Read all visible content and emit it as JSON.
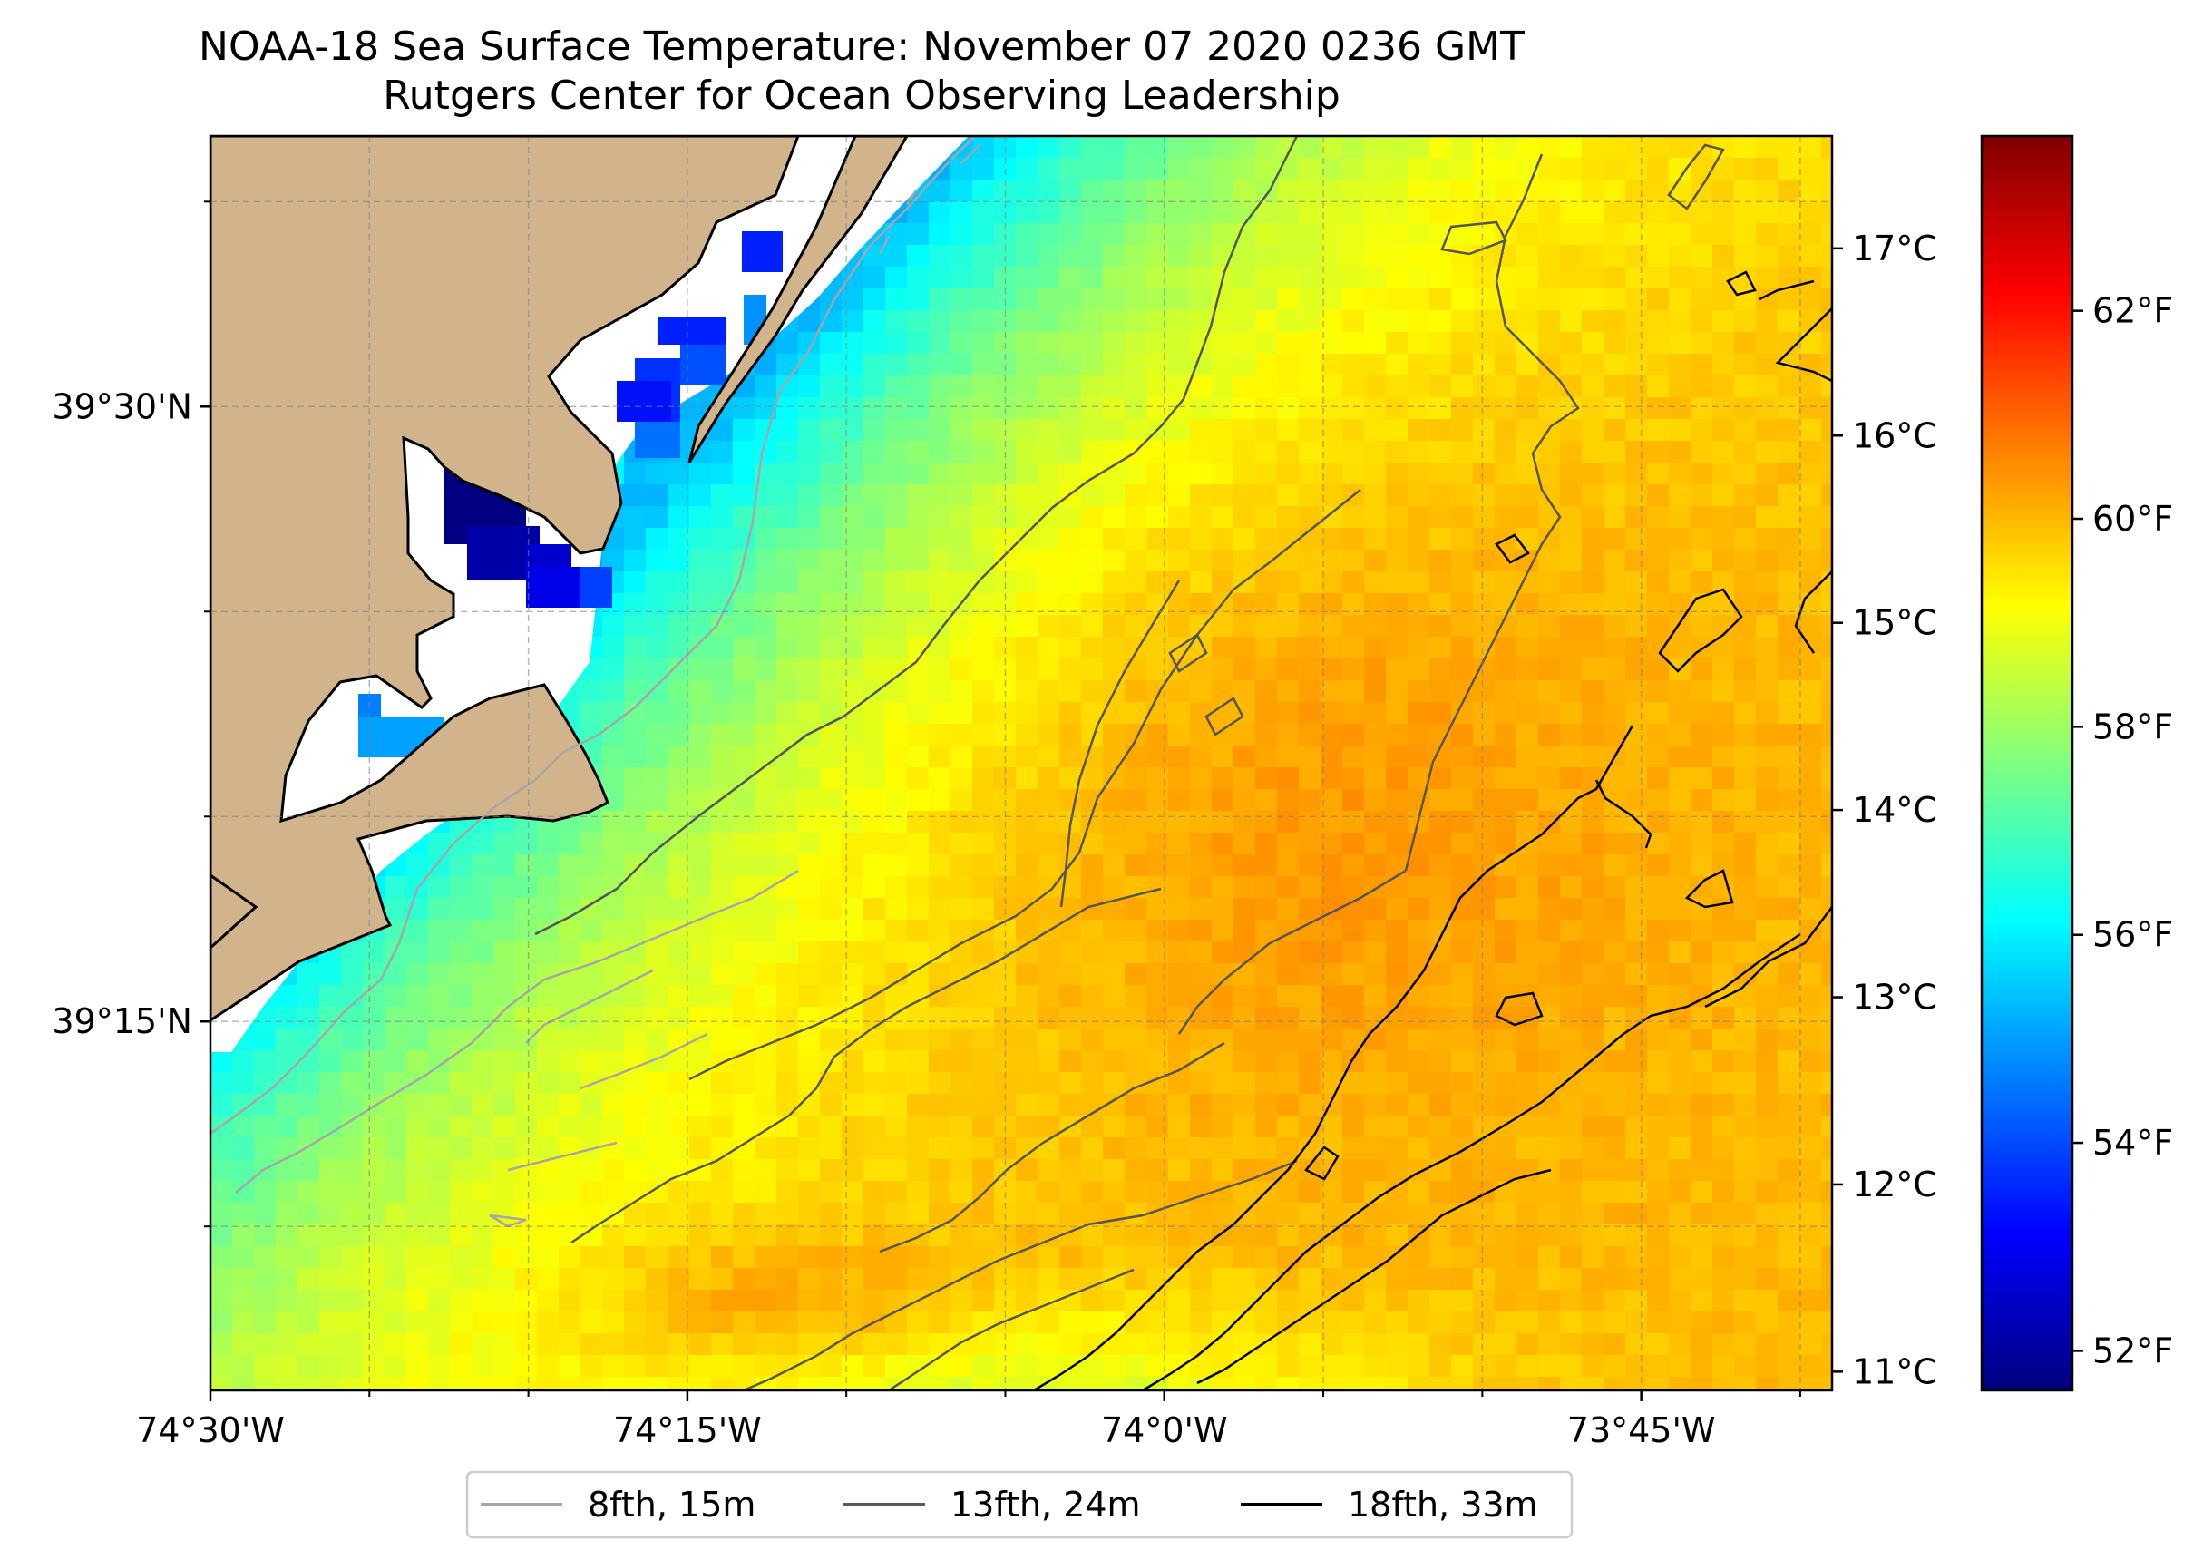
{
  "title": {
    "line1": "NOAA-18 Sea Surface Temperature: November 07 2020 0236 GMT",
    "line2": "Rutgers Center for Ocean Observing Leadership"
  },
  "map": {
    "lon_range": [
      -74.5,
      -73.65
    ],
    "lat_range": [
      39.1,
      39.61
    ],
    "lon_ticks": [
      {
        "value": -74.5,
        "label": "74°30'W"
      },
      {
        "value": -74.25,
        "label": "74°15'W"
      },
      {
        "value": -74.0,
        "label": "74°0'W"
      },
      {
        "value": -73.75,
        "label": "73°45'W"
      }
    ],
    "lon_minor_ticks": [
      -74.41667,
      -74.33333,
      -74.16667,
      -74.08333,
      -73.91667,
      -73.83333,
      -73.66667
    ],
    "lat_ticks": [
      {
        "value": 39.5,
        "label": "39°30'N"
      },
      {
        "value": 39.25,
        "label": "39°15'N"
      }
    ],
    "lat_minor_ticks": [
      39.16667,
      39.33333,
      39.41667,
      39.58333
    ],
    "gridlines": true,
    "colors": {
      "land": "#d2b48c",
      "coast_line": "#000000",
      "no_data": "#ffffff"
    }
  },
  "legend": {
    "placement": "bottom-center",
    "items": [
      {
        "label": "8fth, 15m",
        "color": "#a6a6a6"
      },
      {
        "label": "13fth, 24m",
        "color": "#5a5a5a"
      },
      {
        "label": "18fth, 33m",
        "color": "#000000"
      }
    ]
  },
  "colorbar": {
    "colormap": "jet",
    "range_c": [
      10.9,
      17.6
    ],
    "celsius_ticks": [
      {
        "value": 11,
        "label": "11°C"
      },
      {
        "value": 12,
        "label": "12°C"
      },
      {
        "value": 13,
        "label": "13°C"
      },
      {
        "value": 14,
        "label": "14°C"
      },
      {
        "value": 15,
        "label": "15°C"
      },
      {
        "value": 16,
        "label": "16°C"
      },
      {
        "value": 17,
        "label": "17°C"
      }
    ],
    "fahrenheit_ticks": [
      {
        "value": 52,
        "label": "52°F"
      },
      {
        "value": 54,
        "label": "54°F"
      },
      {
        "value": 56,
        "label": "56°F"
      },
      {
        "value": 58,
        "label": "58°F"
      },
      {
        "value": 60,
        "label": "60°F"
      },
      {
        "value": 62,
        "label": "62°F"
      }
    ]
  }
}
